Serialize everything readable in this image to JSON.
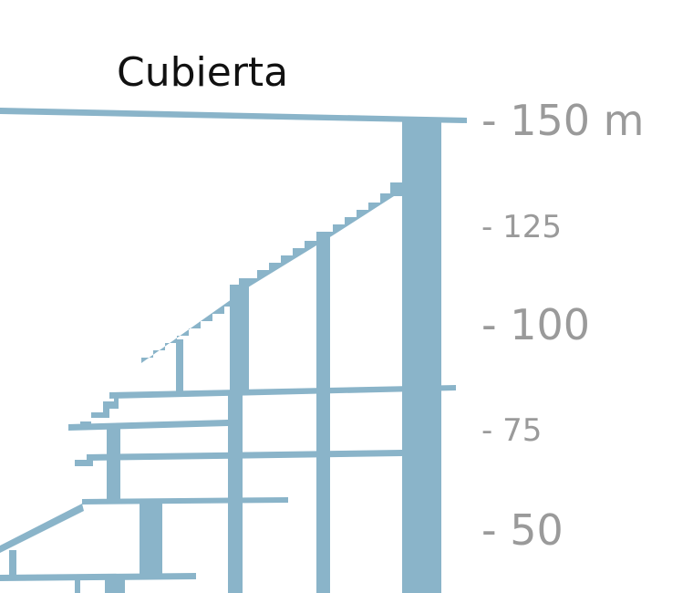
{
  "title": "Cubierta",
  "scale": [
    "- 150 m",
    "- 125",
    "- 100",
    "- 75",
    "- 50"
  ]
}
